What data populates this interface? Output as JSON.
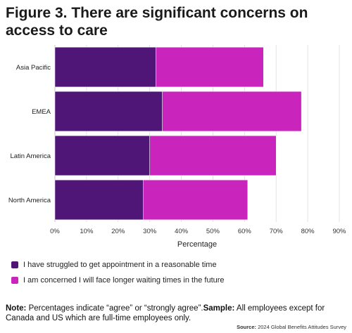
{
  "title": "Figure 3. There are significant concerns on access to care",
  "legend": {
    "items": [
      {
        "label": "I have struggled to get appointment in a reasonable time",
        "color": "#4f1577"
      },
      {
        "label": "I am concerned I will face longer waiting times in the future",
        "color": "#c925bd"
      }
    ]
  },
  "note": {
    "label1": "Note:",
    "text1": " Percentages indicate “agree” or “strongly agree”.",
    "label2": "Sample:",
    "text2": " All employees except for Canada and US which are full-time employees only."
  },
  "source": {
    "label": "Source:",
    "text": " 2024 Global Benefits Attitudes Survey"
  },
  "chart_data": {
    "type": "bar",
    "orientation": "horizontal",
    "stacked": true,
    "categories": [
      "Asia Pacific",
      "EMEA",
      "Latin America",
      "North America"
    ],
    "series": [
      {
        "name": "I have struggled to get appointment in a reasonable time",
        "values": [
          32,
          34,
          30,
          28
        ],
        "color": "#4f1577"
      },
      {
        "name": "I am concerned I will face longer waiting times in the future",
        "values": [
          34,
          44,
          40,
          33
        ],
        "color": "#c925bd"
      }
    ],
    "xlabel": "Percentage",
    "xlim": [
      0,
      90
    ],
    "xticks": [
      "0%",
      "10%",
      "20%",
      "30%",
      "40%",
      "50%",
      "60%",
      "70%",
      "80%",
      "90%"
    ],
    "xtick_values": [
      0,
      10,
      20,
      30,
      40,
      50,
      60,
      70,
      80,
      90
    ],
    "grid": "vertical",
    "legend_position": "bottom-left"
  }
}
